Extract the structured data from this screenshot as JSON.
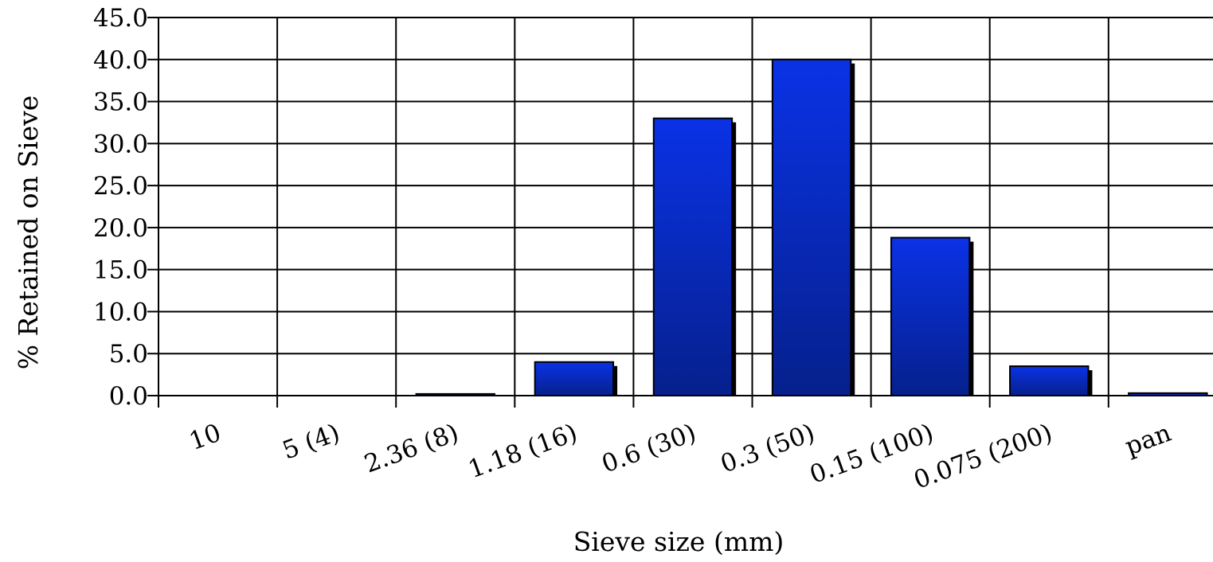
{
  "chart_data": {
    "type": "bar",
    "title": "",
    "xlabel": "Sieve size (mm)",
    "ylabel": "% Retained on Sieve",
    "categories": [
      "10",
      "5 (4)",
      "2.36 (8)",
      "1.18 (16)",
      "0.6 (30)",
      "0.3 (50)",
      "0.15 (100)",
      "0.075 (200)",
      "pan"
    ],
    "values": [
      0.0,
      0.0,
      0.2,
      4.0,
      33.0,
      40.0,
      18.8,
      3.5,
      0.3
    ],
    "ylim": [
      0,
      45
    ],
    "ytick_labels": [
      "0.0",
      "5.0",
      "10.0",
      "15.0",
      "20.0",
      "25.0",
      "30.0",
      "35.0",
      "40.0",
      "45.0"
    ],
    "grid": true,
    "legend": "none",
    "colors": {
      "bar_light": "#0a32e6",
      "bar_dark": "#06208c",
      "shadow": "#000000",
      "grid": "#000000"
    }
  }
}
